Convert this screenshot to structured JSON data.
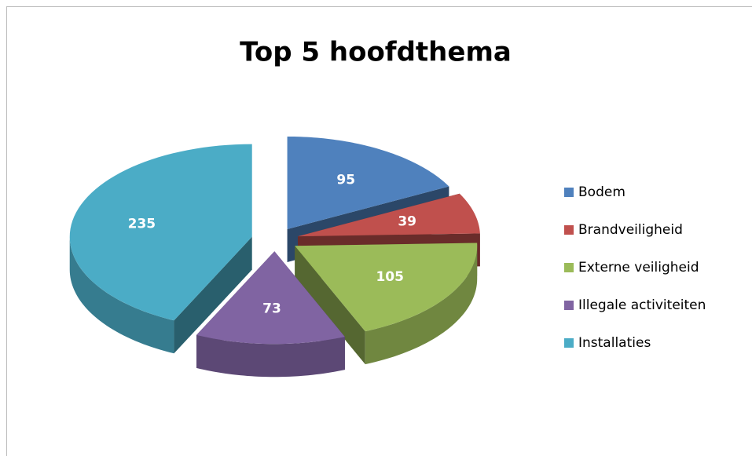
{
  "chart_data": {
    "type": "pie3d",
    "title": "Top 5 hoofdthema",
    "categories": [
      "Bodem",
      "Brandveiligheid",
      "Externe veiligheid",
      "Illegale activiteiten",
      "Installaties"
    ],
    "values": [
      95,
      39,
      105,
      73,
      235
    ],
    "colors": [
      "#4f81bd",
      "#c0504d",
      "#9bbb59",
      "#8064a2",
      "#4bacc6"
    ],
    "legend": "right"
  }
}
